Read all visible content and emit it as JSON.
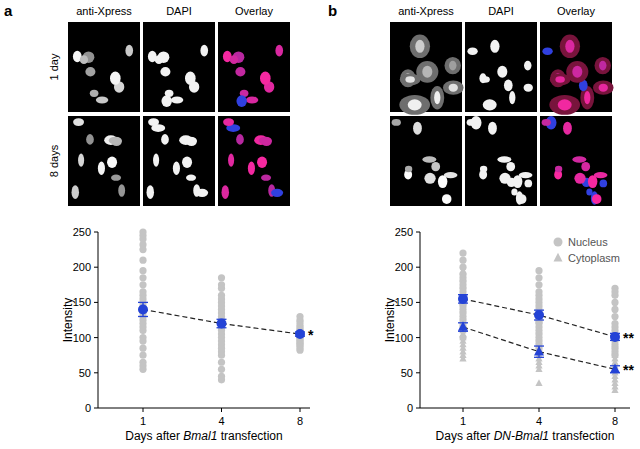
{
  "figure_panels": [
    {
      "label": "a",
      "columns": [
        "anti-Xpress",
        "DAPI",
        "Overlay"
      ],
      "rows": [
        "1 day",
        "8 days"
      ]
    },
    {
      "label": "b",
      "columns": [
        "anti-Xpress",
        "DAPI",
        "Overlay"
      ]
    }
  ],
  "chart_data": [
    {
      "type": "line",
      "categories": [
        "1",
        "4",
        "8"
      ],
      "xlabel": "Days after Bmal1 transfection",
      "ylabel": "Intensity",
      "ylim": [
        0,
        250
      ],
      "yticks": [
        0,
        50,
        100,
        150,
        200,
        250
      ],
      "series": [
        {
          "color": "#2443d6",
          "marker": "circle",
          "line_style": "dashed",
          "values": [
            140,
            120,
            105
          ],
          "errors": [
            10,
            6,
            3
          ],
          "significance": [
            null,
            null,
            "*"
          ],
          "points": [
            [
              250,
              245,
              240,
              232,
              225,
              210,
              195,
              185,
              175,
              165,
              160,
              155,
              150,
              145,
              140,
              135,
              130,
              125,
              120,
              115,
              110,
              100,
              95,
              85,
              75,
              65,
              60,
              55
            ],
            [
              185,
              175,
              170,
              160,
              155,
              150,
              145,
              140,
              135,
              130,
              125,
              120,
              118,
              115,
              110,
              105,
              100,
              95,
              90,
              85,
              80,
              75,
              65,
              55,
              45,
              40
            ],
            [
              130,
              125,
              122,
              118,
              115,
              112,
              110,
              108,
              106,
              104,
              102,
              100,
              98,
              96,
              94,
              92,
              90,
              88,
              85,
              82
            ]
          ]
        }
      ]
    },
    {
      "type": "line",
      "categories": [
        "1",
        "4",
        "8"
      ],
      "xlabel": "Days after DN-Bmal1 transfection",
      "ylabel": "Intensity",
      "ylim": [
        0,
        250
      ],
      "yticks": [
        0,
        50,
        100,
        150,
        200,
        250
      ],
      "legend": "top-right",
      "series": [
        {
          "name": "Nucleus",
          "color": "#2443d6",
          "marker": "circle",
          "line_style": "dashed",
          "values": [
            155,
            132,
            101
          ],
          "errors": [
            6,
            7,
            5
          ],
          "significance": [
            null,
            null,
            "**"
          ],
          "points": [
            [
              220,
              210,
              200,
              190,
              185,
              180,
              175,
              170,
              165,
              160,
              158,
              155,
              152,
              150,
              148,
              145,
              140,
              135,
              130,
              125,
              120,
              115,
              110,
              100
            ],
            [
              195,
              185,
              175,
              165,
              160,
              155,
              150,
              145,
              140,
              135,
              130,
              128,
              125,
              122,
              120,
              115,
              110,
              105,
              100,
              95,
              90,
              85
            ],
            [
              170,
              165,
              160,
              150,
              140,
              130,
              120,
              115,
              110,
              105,
              100,
              98,
              95,
              90,
              85,
              80,
              75
            ]
          ]
        },
        {
          "name": "Cytoplasm",
          "color": "#2443d6",
          "marker": "triangle",
          "line_style": "dashed",
          "values": [
            115,
            80,
            55
          ],
          "errors": [
            6,
            8,
            5
          ],
          "significance": [
            null,
            null,
            "**"
          ],
          "points": [
            [
              195,
              185,
              175,
              160,
              150,
              140,
              130,
              125,
              120,
              115,
              110,
              105,
              100,
              95,
              90,
              85,
              80,
              75,
              70
            ],
            [
              110,
              100,
              95,
              90,
              85,
              80,
              75,
              70,
              65,
              60,
              55,
              35
            ],
            [
              90,
              80,
              75,
              70,
              65,
              60,
              55,
              50,
              45,
              40,
              35,
              30,
              25
            ]
          ]
        }
      ]
    }
  ]
}
